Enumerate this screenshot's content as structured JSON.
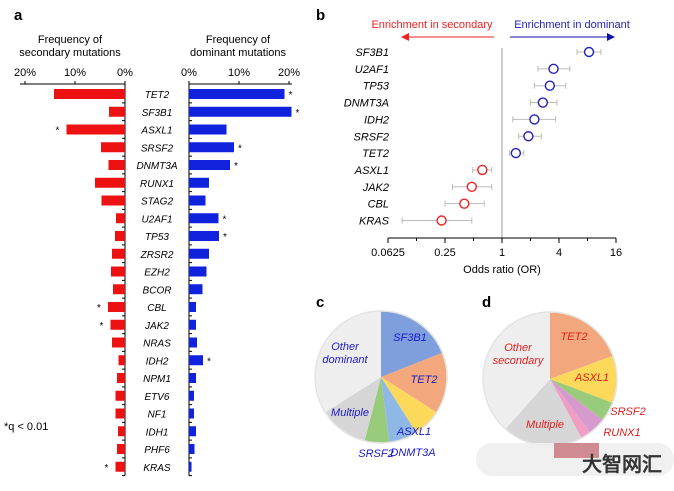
{
  "panel_labels": {
    "a": "a",
    "b": "b",
    "c": "c",
    "d": "d"
  },
  "footnote": "*q < 0.01",
  "watermark": "大智网汇",
  "chart_data": [
    {
      "type": "bar",
      "panel": "a",
      "orientation": "horizontal",
      "categories": [
        "TET2",
        "SF3B1",
        "ASXL1",
        "SRSF2",
        "DNMT3A",
        "RUNX1",
        "STAG2",
        "U2AF1",
        "TP53",
        "ZRSR2",
        "EZH2",
        "BCOR",
        "CBL",
        "JAK2",
        "NRAS",
        "IDH2",
        "NPM1",
        "ETV6",
        "NF1",
        "IDH1",
        "PHF6",
        "KRAS"
      ],
      "series": [
        {
          "name": "Frequency of secondary mutations",
          "color": "#ee1111",
          "direction": "left",
          "values": [
            14.2,
            3.2,
            11.7,
            4.8,
            3.3,
            6.0,
            4.7,
            1.8,
            2.0,
            2.6,
            2.8,
            2.4,
            3.4,
            2.9,
            2.6,
            1.3,
            1.6,
            1.9,
            1.9,
            1.4,
            1.6,
            1.9
          ],
          "significant": [
            "ASXL1",
            "CBL",
            "JAK2",
            "KRAS"
          ]
        },
        {
          "name": "Frequency of dominant mutations",
          "color": "#1122dd",
          "direction": "right",
          "values": [
            19.1,
            20.5,
            7.5,
            9.0,
            8.2,
            4.0,
            3.3,
            5.9,
            6.0,
            4.0,
            3.5,
            2.7,
            1.4,
            1.4,
            1.6,
            2.8,
            1.4,
            1.0,
            1.0,
            1.4,
            1.1,
            0.5
          ],
          "significant": [
            "TET2",
            "SF3B1",
            "SRSF2",
            "DNMT3A",
            "U2AF1",
            "TP53",
            "IDH2"
          ]
        }
      ],
      "xlim": [
        0,
        20
      ],
      "xticks": [
        "0%",
        "10%",
        "20%"
      ],
      "left_title": [
        "Frequency of",
        "secondary mutations"
      ],
      "right_title": [
        "Frequency of",
        "dominant mutations"
      ],
      "sig_marker": "*"
    },
    {
      "type": "scatter",
      "panel": "b",
      "subtype": "forest",
      "categories": [
        "SF3B1",
        "U2AF1",
        "TP53",
        "DNMT3A",
        "IDH2",
        "SRSF2",
        "TET2",
        "ASXL1",
        "JAK2",
        "CBL",
        "KRAS"
      ],
      "or": [
        8.3,
        3.5,
        3.2,
        2.7,
        2.2,
        1.9,
        1.4,
        0.62,
        0.48,
        0.4,
        0.23
      ],
      "ci_low": [
        6.2,
        2.4,
        2.2,
        2.0,
        1.3,
        1.5,
        1.2,
        0.49,
        0.3,
        0.25,
        0.088
      ],
      "ci_high": [
        11.1,
        5.2,
        4.7,
        3.8,
        3.7,
        2.6,
        1.7,
        0.78,
        0.78,
        0.65,
        0.48
      ],
      "xscale": "log2",
      "xlim": [
        0.0625,
        16
      ],
      "xticks": [
        "0.0625",
        "0.25",
        "1",
        "4",
        "16"
      ],
      "xlabel": "Odds ratio (OR)",
      "annotations": {
        "left": "Enrichment in secondary",
        "right": "Enrichment in dominant"
      },
      "colors": {
        "dominant": "#2222bb",
        "secondary": "#ee2222",
        "ci": "#bbbbbb",
        "ref": "#999999"
      }
    },
    {
      "type": "pie",
      "panel": "c",
      "labels": [
        "SF3B1",
        "TET2",
        "ASXL1",
        "DNMT3A",
        "SRSF2",
        "Multiple",
        "Other dominant"
      ],
      "values": [
        19,
        15,
        7,
        7,
        6,
        12,
        34
      ],
      "colors": [
        "#7f9fdc",
        "#f2a77c",
        "#fcd95a",
        "#8fb8e6",
        "#98cc7c",
        "#d6d6d6",
        "#eeeeee"
      ],
      "label_color": "#1a1acc"
    },
    {
      "type": "pie",
      "panel": "d",
      "labels": [
        "TET2",
        "ASXL1",
        "SRSF2",
        "RUNX1",
        "",
        "Multiple",
        "Other secondary"
      ],
      "values": [
        19.4,
        11.4,
        4.7,
        4.2,
        2.5,
        19.4,
        38.4
      ],
      "colors": [
        "#f2a77c",
        "#fcd95a",
        "#98cc7c",
        "#d69bcc",
        "#ef9fc6",
        "#d6d6d6",
        "#eeeeee"
      ],
      "label_color": "#e01e1e"
    }
  ]
}
